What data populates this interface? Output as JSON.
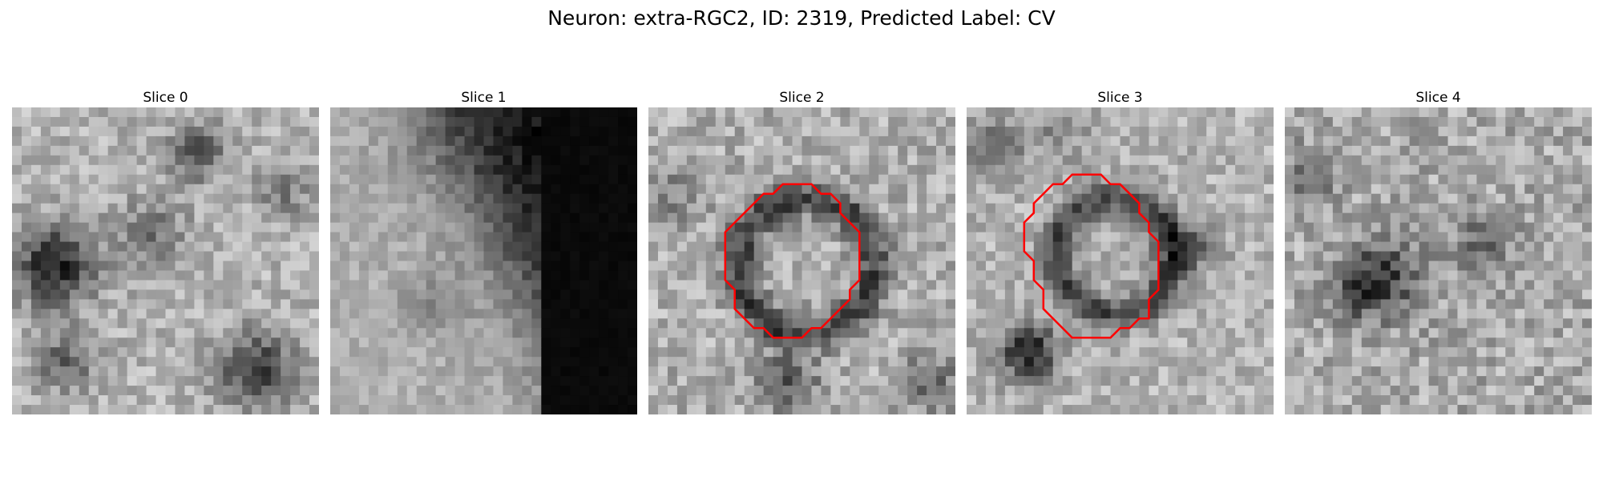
{
  "figure": {
    "title": "Neuron: extra-RGC2, ID: 2319, Predicted Label: CV"
  },
  "slices": [
    {
      "label": "Slice 0",
      "has_contour": false
    },
    {
      "label": "Slice 1",
      "has_contour": false
    },
    {
      "label": "Slice 2",
      "has_contour": true
    },
    {
      "label": "Slice 3",
      "has_contour": true
    },
    {
      "label": "Slice 4",
      "has_contour": false
    }
  ],
  "colors": {
    "contour": "#ff0000",
    "background": "#ffffff"
  },
  "grid": {
    "pixels_per_side": 32
  }
}
